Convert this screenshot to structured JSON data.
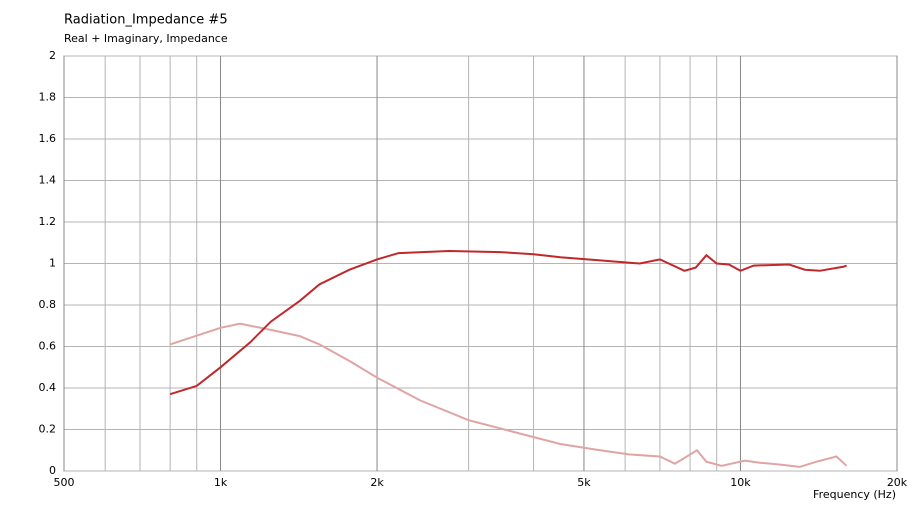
{
  "chart_data": {
    "type": "line",
    "title": "Radiation_Impedance #5",
    "subtitle": "Real + Imaginary, Impedance",
    "x_label": "Frequency  (Hz)",
    "xscale": "log",
    "xlim": [
      500,
      20000
    ],
    "xticks": [
      {
        "value": 500,
        "label": "500"
      },
      {
        "value": 1000,
        "label": "1k"
      },
      {
        "value": 2000,
        "label": "2k"
      },
      {
        "value": 5000,
        "label": "5k"
      },
      {
        "value": 10000,
        "label": "10k"
      },
      {
        "value": 20000,
        "label": "20k"
      }
    ],
    "xminor": [
      600,
      700,
      800,
      900,
      3000,
      4000,
      6000,
      7000,
      8000,
      9000
    ],
    "ylim": [
      0,
      2
    ],
    "yticks": [
      0,
      0.2,
      0.4,
      0.6,
      0.8,
      1,
      1.2,
      1.4,
      1.6,
      1.8,
      2
    ],
    "grid": true,
    "series": [
      {
        "color": "#c0282a",
        "x": [
          800,
          900,
          1000,
          1140,
          1250,
          1420,
          1550,
          1770,
          2000,
          2200,
          2750,
          3450,
          4000,
          4500,
          5370,
          6400,
          7000,
          7800,
          8200,
          8600,
          9000,
          9500,
          10000,
          10600,
          12400,
          13300,
          14200,
          15800,
          16000
        ],
        "values": [
          0.37,
          0.41,
          0.5,
          0.62,
          0.72,
          0.82,
          0.9,
          0.97,
          1.02,
          1.05,
          1.06,
          1.055,
          1.045,
          1.03,
          1.015,
          1.0,
          1.02,
          0.965,
          0.98,
          1.04,
          1.0,
          0.995,
          0.965,
          0.99,
          0.995,
          0.97,
          0.965,
          0.985,
          0.99
        ]
      },
      {
        "color": "#e0a4a4",
        "x": [
          800,
          1000,
          1090,
          1250,
          1420,
          1550,
          1770,
          2000,
          2420,
          3000,
          3770,
          4500,
          5370,
          6100,
          7000,
          7480,
          8250,
          8600,
          9200,
          10200,
          10900,
          12000,
          13000,
          14000,
          15300,
          16000
        ],
        "values": [
          0.61,
          0.69,
          0.71,
          0.68,
          0.65,
          0.61,
          0.53,
          0.45,
          0.34,
          0.245,
          0.18,
          0.13,
          0.1,
          0.08,
          0.07,
          0.035,
          0.1,
          0.045,
          0.025,
          0.05,
          0.04,
          0.03,
          0.02,
          0.045,
          0.07,
          0.025
        ]
      }
    ]
  }
}
